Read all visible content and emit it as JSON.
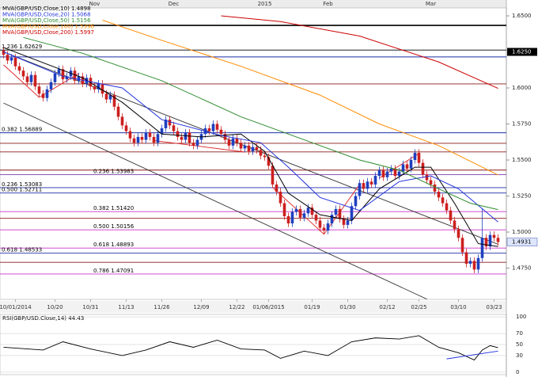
{
  "chart_data": {
    "type": "candlestick",
    "categories": [
      null,
      null,
      null,
      "10/01/2014",
      null,
      null,
      null,
      null,
      null,
      null,
      null,
      null,
      null,
      "10/20",
      null,
      null,
      null,
      null,
      null,
      null,
      null,
      null,
      "10/31",
      null,
      null,
      null,
      null,
      null,
      null,
      null,
      null,
      "11/13",
      null,
      null,
      null,
      null,
      null,
      null,
      null,
      null,
      "11/26",
      null,
      null,
      null,
      null,
      null,
      null,
      null,
      null,
      null,
      "12/09",
      null,
      null,
      null,
      null,
      null,
      null,
      null,
      null,
      "12/22",
      null,
      null,
      null,
      null,
      null,
      null,
      null,
      "01/06/2015",
      null,
      null,
      null,
      null,
      null,
      null,
      null,
      null,
      null,
      null,
      "01/19",
      null,
      null,
      null,
      null,
      null,
      null,
      null,
      null,
      "01/30",
      null,
      null,
      null,
      null,
      null,
      null,
      null,
      null,
      null,
      "02/12",
      null,
      null,
      null,
      null,
      null,
      null,
      null,
      "02/25",
      null,
      null,
      null,
      null,
      null,
      null,
      null,
      null,
      null,
      "03/10",
      null,
      null,
      null,
      null,
      null,
      null,
      null,
      null,
      "03/23",
      null
    ],
    "months": [
      null,
      null,
      null,
      null,
      null,
      null,
      null,
      null,
      null,
      null,
      null,
      null,
      null,
      null,
      null,
      null,
      null,
      null,
      null,
      null,
      null,
      null,
      null,
      "Nov",
      null,
      null,
      null,
      null,
      null,
      null,
      null,
      null,
      null,
      null,
      null,
      null,
      null,
      null,
      null,
      null,
      null,
      null,
      null,
      "Dec",
      null,
      null,
      null,
      null,
      null,
      null,
      null,
      null,
      null,
      null,
      null,
      null,
      null,
      null,
      null,
      null,
      null,
      null,
      null,
      null,
      null,
      null,
      "2015",
      null,
      null,
      null,
      null,
      null,
      null,
      null,
      null,
      null,
      null,
      null,
      null,
      null,
      null,
      null,
      "Feb",
      null,
      null,
      null,
      null,
      null,
      null,
      null,
      null,
      null,
      null,
      null,
      null,
      null,
      null,
      null,
      null,
      null,
      null,
      null,
      null,
      null,
      null,
      null,
      null,
      null,
      "Mar",
      null,
      null,
      null,
      null,
      null,
      null,
      null,
      null,
      null,
      null,
      null,
      null,
      null,
      null,
      null,
      null,
      null
    ],
    "open": [
      1.626,
      1.623,
      1.619,
      1.621,
      1.615,
      1.612,
      1.608,
      1.604,
      1.609,
      1.601,
      1.596,
      1.593,
      1.599,
      1.604,
      1.61,
      1.613,
      1.606,
      1.608,
      1.612,
      1.605,
      1.608,
      1.603,
      1.607,
      1.601,
      1.599,
      1.603,
      1.596,
      1.592,
      1.595,
      1.587,
      1.58,
      1.574,
      1.57,
      1.565,
      1.562,
      1.566,
      1.564,
      1.569,
      1.566,
      1.562,
      1.568,
      1.572,
      1.578,
      1.574,
      1.57,
      1.566,
      1.564,
      1.569,
      1.562,
      1.56,
      1.564,
      1.568,
      1.572,
      1.57,
      1.575,
      1.571,
      1.568,
      1.564,
      1.56,
      1.565,
      1.562,
      1.558,
      1.56,
      1.556,
      1.559,
      1.557,
      1.553,
      1.552,
      1.546,
      1.533,
      1.528,
      1.52,
      1.511,
      1.506,
      1.514,
      1.516,
      1.51,
      1.513,
      1.517,
      1.512,
      1.508,
      1.503,
      1.501,
      1.506,
      1.512,
      1.516,
      1.509,
      1.505,
      1.508,
      1.518,
      1.525,
      1.534,
      1.53,
      1.535,
      1.533,
      1.539,
      1.543,
      1.538,
      1.542,
      1.544,
      1.539,
      1.542,
      1.547,
      1.544,
      1.55,
      1.555,
      1.548,
      1.54,
      1.536,
      1.533,
      1.528,
      1.524,
      1.52,
      1.515,
      1.508,
      1.502,
      1.496,
      1.486,
      1.478,
      1.48,
      1.474,
      1.482,
      1.496,
      1.49,
      1.498,
      1.496
    ],
    "high": [
      1.6285,
      1.6255,
      1.6235,
      1.6235,
      1.6175,
      1.6145,
      1.6105,
      1.6115,
      1.6115,
      1.6035,
      1.5985,
      1.6015,
      1.6065,
      1.6125,
      1.6155,
      1.6155,
      1.6105,
      1.6145,
      1.6145,
      1.6105,
      1.6105,
      1.6095,
      1.6095,
      1.6035,
      1.6055,
      1.6055,
      1.5985,
      1.5975,
      1.5975,
      1.5895,
      1.5825,
      1.5765,
      1.5725,
      1.5675,
      1.5685,
      1.5685,
      1.5715,
      1.5715,
      1.5685,
      1.5705,
      1.5745,
      1.5805,
      1.5805,
      1.5765,
      1.5725,
      1.5685,
      1.5715,
      1.5715,
      1.5645,
      1.5665,
      1.5705,
      1.5745,
      1.5745,
      1.5775,
      1.5775,
      1.5735,
      1.5705,
      1.5665,
      1.5675,
      1.5675,
      1.5645,
      1.5625,
      1.5625,
      1.5615,
      1.5615,
      1.5595,
      1.5555,
      1.5545,
      1.5485,
      1.5355,
      1.5305,
      1.5225,
      1.5135,
      1.5165,
      1.5185,
      1.5185,
      1.5155,
      1.5195,
      1.5195,
      1.5145,
      1.5105,
      1.5055,
      1.5085,
      1.5145,
      1.5185,
      1.5185,
      1.5115,
      1.5105,
      1.5205,
      1.5275,
      1.5365,
      1.5365,
      1.5375,
      1.5375,
      1.5415,
      1.5455,
      1.5455,
      1.5445,
      1.5465,
      1.5465,
      1.5445,
      1.5495,
      1.5495,
      1.5525,
      1.5575,
      1.5575,
      1.5505,
      1.5425,
      1.5385,
      1.5355,
      1.5305,
      1.5265,
      1.5225,
      1.5175,
      1.5105,
      1.5045,
      1.4985,
      1.4885,
      1.4825,
      1.4825,
      1.4845,
      1.5165,
      1.4985,
      1.5005,
      1.5005,
      1.4985
    ],
    "low": [
      1.6205,
      1.6165,
      1.6165,
      1.6125,
      1.6095,
      1.6055,
      1.6015,
      1.6015,
      1.5985,
      1.5935,
      1.5905,
      1.5905,
      1.5965,
      1.6015,
      1.6075,
      1.6035,
      1.6035,
      1.6055,
      1.6025,
      1.6025,
      1.6005,
      1.6005,
      1.5985,
      1.5965,
      1.5965,
      1.5935,
      1.5895,
      1.5895,
      1.5845,
      1.5775,
      1.5715,
      1.5675,
      1.5625,
      1.5595,
      1.5595,
      1.5615,
      1.5615,
      1.5635,
      1.5595,
      1.5595,
      1.5655,
      1.5695,
      1.5715,
      1.5675,
      1.5635,
      1.5615,
      1.5615,
      1.5595,
      1.5575,
      1.5575,
      1.5615,
      1.5655,
      1.5675,
      1.5675,
      1.5685,
      1.5655,
      1.5615,
      1.5575,
      1.5575,
      1.5595,
      1.5555,
      1.5555,
      1.5535,
      1.5535,
      1.5545,
      1.5505,
      1.5495,
      1.5435,
      1.5305,
      1.5255,
      1.5175,
      1.5085,
      1.5035,
      1.5035,
      1.5115,
      1.5075,
      1.5075,
      1.5105,
      1.5095,
      1.5055,
      1.5005,
      1.4985,
      1.4985,
      1.5035,
      1.5095,
      1.5065,
      1.5025,
      1.5025,
      1.5055,
      1.5155,
      1.5225,
      1.5275,
      1.5275,
      1.5305,
      1.5305,
      1.5365,
      1.5355,
      1.5355,
      1.5395,
      1.5365,
      1.5365,
      1.5395,
      1.5415,
      1.5415,
      1.5475,
      1.5455,
      1.5375,
      1.5335,
      1.5305,
      1.5255,
      1.5215,
      1.5175,
      1.5125,
      1.5055,
      1.4995,
      1.4935,
      1.4835,
      1.4755,
      1.4755,
      1.4715,
      1.4715,
      1.4795,
      1.4875,
      1.4875,
      1.4935,
      1.4906
    ],
    "close": [
      1.623,
      1.619,
      1.621,
      1.615,
      1.612,
      1.608,
      1.604,
      1.609,
      1.601,
      1.596,
      1.593,
      1.599,
      1.604,
      1.61,
      1.613,
      1.606,
      1.608,
      1.612,
      1.605,
      1.608,
      1.603,
      1.607,
      1.601,
      1.599,
      1.603,
      1.596,
      1.592,
      1.595,
      1.587,
      1.58,
      1.574,
      1.57,
      1.565,
      1.562,
      1.566,
      1.564,
      1.569,
      1.566,
      1.562,
      1.568,
      1.572,
      1.578,
      1.574,
      1.57,
      1.566,
      1.564,
      1.569,
      1.562,
      1.56,
      1.564,
      1.568,
      1.572,
      1.57,
      1.575,
      1.571,
      1.568,
      1.564,
      1.56,
      1.565,
      1.562,
      1.558,
      1.56,
      1.556,
      1.559,
      1.557,
      1.553,
      1.552,
      1.546,
      1.533,
      1.528,
      1.52,
      1.511,
      1.506,
      1.514,
      1.516,
      1.51,
      1.513,
      1.517,
      1.512,
      1.508,
      1.503,
      1.501,
      1.506,
      1.512,
      1.516,
      1.509,
      1.505,
      1.508,
      1.518,
      1.525,
      1.534,
      1.53,
      1.535,
      1.533,
      1.539,
      1.543,
      1.538,
      1.542,
      1.544,
      1.539,
      1.542,
      1.547,
      1.544,
      1.55,
      1.555,
      1.548,
      1.54,
      1.536,
      1.533,
      1.528,
      1.524,
      1.52,
      1.515,
      1.508,
      1.502,
      1.496,
      1.486,
      1.478,
      1.48,
      1.474,
      1.482,
      1.496,
      1.49,
      1.498,
      1.496,
      1.4931
    ],
    "up_color": "#1f3fbf",
    "down_color": "#cc1f1f",
    "ylim": [
      1.4533,
      1.6555
    ],
    "yticks": [
      {
        "value": 1.65,
        "label": "1.6500"
      },
      {
        "value": 1.6,
        "label": "1.6000"
      },
      {
        "value": 1.575,
        "label": "1.5750"
      },
      {
        "value": 1.55,
        "label": "1.5500"
      },
      {
        "value": 1.525,
        "label": "1.5250"
      },
      {
        "value": 1.5,
        "label": "1.5000"
      },
      {
        "value": 1.475,
        "label": "1.4750"
      }
    ],
    "marked_level": {
      "value": 1.625,
      "label": "1.6250"
    },
    "last_price": 1.4931,
    "moving_averages": [
      {
        "name": "MVA(GBP/USD,Close,10) 1.4898",
        "color": "#000000",
        "x": [
          0,
          20,
          30,
          40,
          50,
          60,
          66,
          72,
          80,
          88,
          95,
          104,
          108,
          114,
          120,
          125
        ],
        "values": [
          1.628,
          1.607,
          1.59,
          1.568,
          1.566,
          1.568,
          1.556,
          1.527,
          1.512,
          1.508,
          1.53,
          1.545,
          1.545,
          1.52,
          1.492,
          1.49
        ]
      },
      {
        "name": "MVA(GBP/USD,Close,20) 1.5068",
        "color": "#2233dd",
        "x": [
          0,
          15,
          30,
          40,
          55,
          65,
          72,
          80,
          90,
          100,
          108,
          115,
          125
        ],
        "values": [
          1.625,
          1.608,
          1.6,
          1.578,
          1.567,
          1.562,
          1.545,
          1.524,
          1.515,
          1.535,
          1.539,
          1.53,
          1.507
        ]
      },
      {
        "name": "MVA(GBP/USD,Close,50) 1.5156",
        "color": "#2e8b2e",
        "x": [
          5,
          20,
          40,
          60,
          75,
          90,
          100,
          110,
          118,
          125
        ],
        "values": [
          1.635,
          1.624,
          1.605,
          1.58,
          1.565,
          1.55,
          1.543,
          1.53,
          1.52,
          1.5156
        ]
      },
      {
        "name": "MVA(GBP/USD,Close,100) 1.5396",
        "color": "#ff8c00",
        "x": [
          25,
          40,
          60,
          80,
          95,
          110,
          125
        ],
        "values": [
          1.647,
          1.633,
          1.615,
          1.595,
          1.575,
          1.56,
          1.5396
        ]
      },
      {
        "name": "MVA(GBP/USD,Close,200) 1.5997",
        "color": "#cc0000",
        "x": [
          55,
          70,
          90,
          110,
          125
        ],
        "values": [
          1.65,
          1.646,
          1.636,
          1.618,
          1.5997
        ]
      }
    ],
    "trendlines": [
      {
        "color": "#333333",
        "x": [
          0,
          125
        ],
        "values": [
          1.625,
          1.4915
        ]
      },
      {
        "color": "#333333",
        "x": [
          0,
          107
        ],
        "values": [
          1.5895,
          1.4535
        ]
      },
      {
        "color": "#dd2222",
        "x": [
          0,
          9,
          19
        ],
        "values": [
          1.616,
          1.5935,
          1.61
        ]
      },
      {
        "color": "#dd2222",
        "x": [
          38,
          61
        ],
        "values": [
          1.5635,
          1.5555
        ]
      },
      {
        "color": "#dd2222",
        "x": [
          68,
          81,
          90
        ],
        "values": [
          1.531,
          1.4985,
          1.533
        ]
      },
      {
        "color": "#dd2222",
        "x": [
          95,
          105
        ],
        "values": [
          1.5375,
          1.5545
        ]
      }
    ],
    "levels": [
      {
        "value": 1.6434,
        "color": "#000000"
      },
      {
        "value": 1.62629,
        "label": "1.236 1.62629",
        "color": "#000000"
      },
      {
        "value": 1.6215,
        "color": "#1c2fa8"
      },
      {
        "value": 1.6028,
        "color": "#8b1a1a"
      },
      {
        "value": 1.56889,
        "label": "0.382 1.56889",
        "color": "#1c2fa8"
      },
      {
        "value": 1.5616,
        "color": "#8b1a1a"
      },
      {
        "value": 1.5556,
        "color": "#8b1a1a"
      },
      {
        "value": 1.543,
        "color": "#8b1a1a"
      },
      {
        "value": 1.53983,
        "label": "0.236 1.53983",
        "color": "#7b3fb0"
      },
      {
        "value": 1.53083,
        "label": "0.236 1.53083",
        "color": "#1c2fa8"
      },
      {
        "value": 1.52711,
        "label": "0.500 1.52711",
        "color": "#1c2fa8"
      },
      {
        "value": 1.5142,
        "label": "0.382 1.51420",
        "color": "#cc33cc"
      },
      {
        "value": 1.5095,
        "color": "#8b1a1a"
      },
      {
        "value": 1.50156,
        "label": "0.500 1.50156",
        "color": "#cc33cc"
      },
      {
        "value": 1.48893,
        "label": "0.618 1.48893",
        "color": "#cc33cc"
      },
      {
        "value": 1.48533,
        "label": "0.618 1.48533",
        "color": "#1c2fa8"
      },
      {
        "value": 1.479,
        "color": "#8b1a1a"
      },
      {
        "value": 1.47091,
        "label": "0.786 1.47091",
        "color": "#cc33cc"
      }
    ],
    "rsi": {
      "title": "RSI(GBP/USD.Close,14) 44.43",
      "color": "#000000",
      "x": [
        0,
        10,
        15,
        22,
        30,
        36,
        42,
        48,
        54,
        60,
        66,
        70,
        76,
        82,
        88,
        94,
        100,
        105,
        110,
        115,
        119,
        121,
        123,
        125
      ],
      "values": [
        45,
        40,
        55,
        42,
        30,
        40,
        55,
        45,
        58,
        42,
        40,
        25,
        38,
        30,
        55,
        62,
        60,
        66,
        45,
        35,
        22,
        40,
        48,
        44.43
      ],
      "ylim": [
        -4.5,
        104.5
      ],
      "yticks": [
        0,
        30,
        50,
        70,
        100
      ],
      "trend": {
        "color": "#2233dd",
        "x": [
          112,
          125
        ],
        "values": [
          24,
          38
        ]
      }
    }
  }
}
